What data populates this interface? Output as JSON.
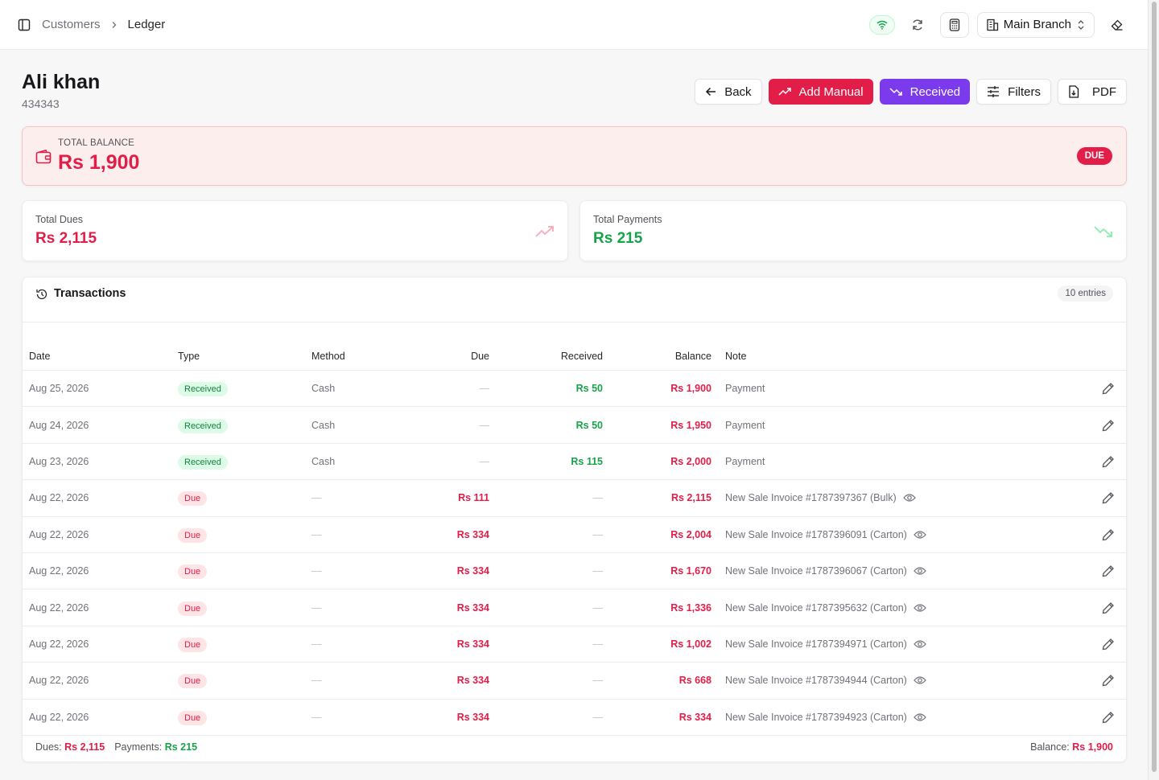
{
  "breadcrumb": {
    "parent": "Customers",
    "current": "Ledger"
  },
  "topbar": {
    "branch": "Main Branch"
  },
  "customer": {
    "name": "Ali khan",
    "code": "434343"
  },
  "actions": {
    "back": "Back",
    "add_manual": "Add Manual",
    "received": "Received",
    "filters": "Filters",
    "pdf": "PDF"
  },
  "balance": {
    "label": "TOTAL BALANCE",
    "value": "Rs 1,900",
    "status": "DUE"
  },
  "stats": {
    "dues": {
      "label": "Total Dues",
      "value": "Rs 2,115"
    },
    "payments": {
      "label": "Total Payments",
      "value": "Rs 215"
    }
  },
  "transactions": {
    "title": "Transactions",
    "entries": "10 entries",
    "columns": {
      "date": "Date",
      "type": "Type",
      "method": "Method",
      "due": "Due",
      "received": "Received",
      "balance": "Balance",
      "note": "Note"
    },
    "rows": [
      {
        "date": "Aug 25, 2026",
        "type": "Received",
        "method": "Cash",
        "due": "—",
        "received": "Rs 50",
        "balance": "Rs 1,900",
        "note": "Payment"
      },
      {
        "date": "Aug 24, 2026",
        "type": "Received",
        "method": "Cash",
        "due": "—",
        "received": "Rs 50",
        "balance": "Rs 1,950",
        "note": "Payment"
      },
      {
        "date": "Aug 23, 2026",
        "type": "Received",
        "method": "Cash",
        "due": "—",
        "received": "Rs 115",
        "balance": "Rs 2,000",
        "note": "Payment"
      },
      {
        "date": "Aug 22, 2026",
        "type": "Due",
        "method": "—",
        "due": "Rs 111",
        "received": "—",
        "balance": "Rs 2,115",
        "note": "New Sale Invoice #1787397367 (Bulk)"
      },
      {
        "date": "Aug 22, 2026",
        "type": "Due",
        "method": "—",
        "due": "Rs 334",
        "received": "—",
        "balance": "Rs 2,004",
        "note": "New Sale Invoice #1787396091 (Carton)"
      },
      {
        "date": "Aug 22, 2026",
        "type": "Due",
        "method": "—",
        "due": "Rs 334",
        "received": "—",
        "balance": "Rs 1,670",
        "note": "New Sale Invoice #1787396067 (Carton)"
      },
      {
        "date": "Aug 22, 2026",
        "type": "Due",
        "method": "—",
        "due": "Rs 334",
        "received": "—",
        "balance": "Rs 1,336",
        "note": "New Sale Invoice #1787395632 (Carton)"
      },
      {
        "date": "Aug 22, 2026",
        "type": "Due",
        "method": "—",
        "due": "Rs 334",
        "received": "—",
        "balance": "Rs 1,002",
        "note": "New Sale Invoice #1787394971 (Carton)"
      },
      {
        "date": "Aug 22, 2026",
        "type": "Due",
        "method": "—",
        "due": "Rs 334",
        "received": "—",
        "balance": "Rs 668",
        "note": "New Sale Invoice #1787394944 (Carton)"
      },
      {
        "date": "Aug 22, 2026",
        "type": "Due",
        "method": "—",
        "due": "Rs 334",
        "received": "—",
        "balance": "Rs 334",
        "note": "New Sale Invoice #1787394923 (Carton)"
      }
    ],
    "footer": {
      "dues_label": "Dues:",
      "dues_value": "Rs 2,115",
      "payments_label": "Payments:",
      "payments_value": "Rs 215",
      "balance_label": "Balance:",
      "balance_value": "Rs 1,900"
    }
  },
  "colors": {
    "accent_red": "#e11d48",
    "accent_purple": "#7c3aed",
    "accent_green": "#16a34a"
  },
  "icons": [
    "sidebar-toggle-icon",
    "chevron-right-icon",
    "wifi-icon",
    "refresh-icon",
    "calculator-icon",
    "building-icon",
    "chevrons-up-down-icon",
    "eraser-icon",
    "arrow-left-icon",
    "trending-up-icon",
    "trending-down-icon",
    "sliders-icon",
    "file-download-icon",
    "wallet-icon",
    "history-icon",
    "eye-icon",
    "pencil-icon"
  ]
}
